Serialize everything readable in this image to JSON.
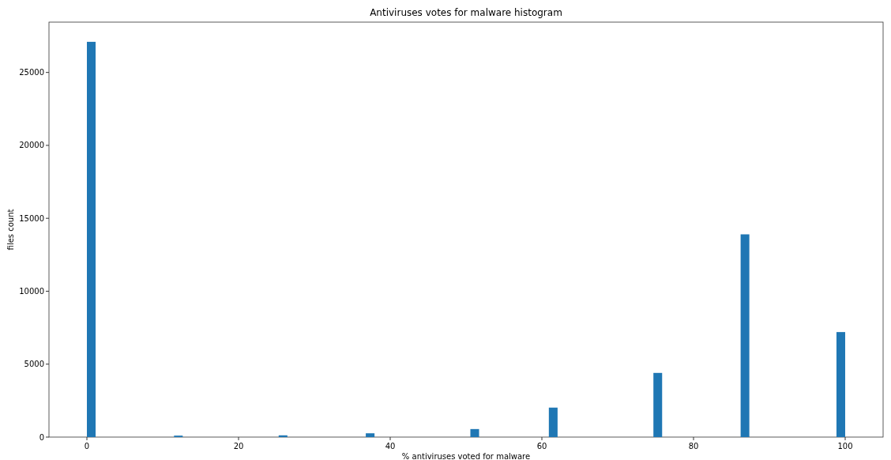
{
  "chart_data": {
    "type": "histogram",
    "title": "Antiviruses votes for malware histogram",
    "xlabel": "% antiviruses voted for malware",
    "ylabel": "files count",
    "bins": [
      0,
      1.15,
      2.3,
      3.45,
      4.6,
      5.75,
      6.9,
      8.05,
      9.2,
      10.34,
      11.49,
      12.64,
      13.79,
      14.94,
      16.09,
      17.24,
      18.39,
      19.54,
      20.69,
      21.84,
      22.99,
      24.14,
      25.29,
      26.44,
      27.59,
      28.74,
      29.89,
      31.03,
      32.18,
      33.33,
      34.48,
      35.63,
      36.78,
      37.93,
      39.08,
      40.23,
      41.38,
      42.53,
      43.68,
      44.83,
      45.98,
      47.13,
      48.28,
      49.43,
      50.57,
      51.72,
      52.87,
      54.02,
      55.17,
      56.32,
      57.47,
      58.62,
      59.77,
      60.92,
      62.07,
      63.22,
      64.37,
      65.52,
      66.67,
      67.82,
      68.97,
      70.11,
      71.26,
      72.41,
      73.56,
      74.71,
      75.86,
      77.01,
      78.16,
      79.31,
      80.46,
      81.61,
      82.76,
      83.91,
      85.06,
      86.21,
      87.36,
      88.51,
      89.66,
      90.8,
      91.95,
      93.1,
      94.25,
      95.4,
      96.55,
      97.7,
      98.85,
      100
    ],
    "values": [
      27100,
      0,
      0,
      0,
      0,
      0,
      0,
      0,
      0,
      0,
      100,
      0,
      0,
      0,
      0,
      0,
      0,
      0,
      0,
      0,
      0,
      0,
      120,
      0,
      0,
      0,
      0,
      0,
      0,
      0,
      0,
      0,
      260,
      0,
      0,
      0,
      0,
      0,
      0,
      0,
      0,
      0,
      0,
      0,
      550,
      0,
      0,
      0,
      0,
      0,
      0,
      0,
      0,
      2020,
      0,
      0,
      0,
      0,
      0,
      0,
      0,
      0,
      0,
      0,
      0,
      4400,
      0,
      0,
      0,
      0,
      0,
      0,
      0,
      0,
      0,
      13900,
      0,
      0,
      0,
      0,
      0,
      0,
      0,
      0,
      0,
      0,
      7200
    ],
    "color": "#1f77b4",
    "xlim": [
      -5,
      105
    ],
    "ylim": [
      0,
      28450
    ],
    "xticks": [
      0,
      20,
      40,
      60,
      80,
      100
    ],
    "yticks": [
      0,
      5000,
      10000,
      15000,
      20000,
      25000
    ],
    "grid": false
  }
}
